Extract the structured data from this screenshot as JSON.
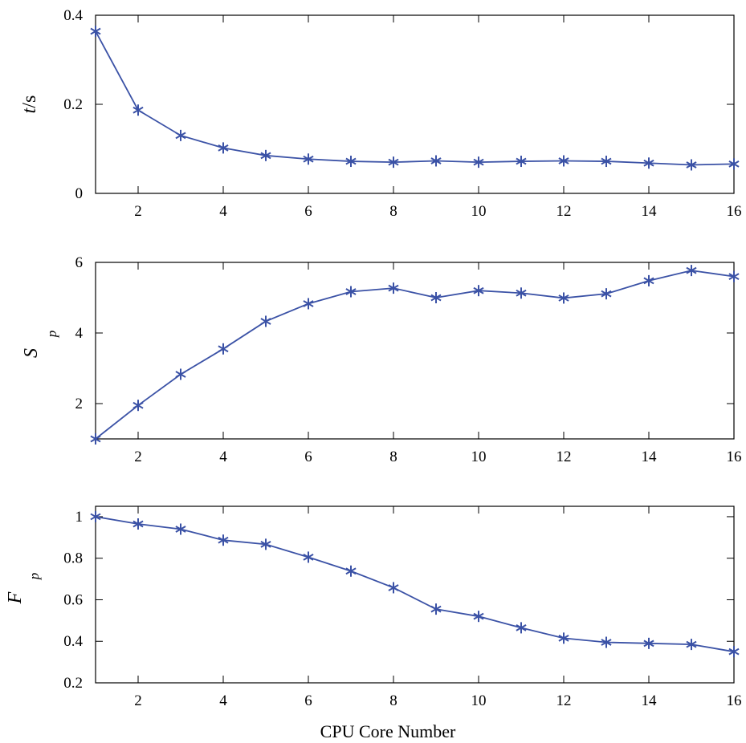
{
  "chart_data": [
    {
      "type": "line",
      "ylabel_main": "t",
      "ylabel_unit": "/s",
      "xlim": [
        1,
        16
      ],
      "ylim": [
        0,
        0.4
      ],
      "xticks": [
        2,
        4,
        6,
        8,
        10,
        12,
        14,
        16
      ],
      "yticks": [
        0,
        0.2,
        0.4
      ],
      "ytick_labels": [
        "0",
        "0.2",
        "0.4"
      ],
      "marker": "asterisk",
      "color": "#3b52a6",
      "series": [
        {
          "name": "t/s",
          "x": [
            1,
            2,
            3,
            4,
            5,
            6,
            7,
            8,
            9,
            10,
            11,
            12,
            13,
            14,
            15,
            16
          ],
          "values": [
            0.364,
            0.187,
            0.13,
            0.102,
            0.085,
            0.077,
            0.072,
            0.07,
            0.073,
            0.07,
            0.072,
            0.073,
            0.072,
            0.068,
            0.064,
            0.066
          ]
        }
      ]
    },
    {
      "type": "line",
      "ylabel_main": "S",
      "ylabel_sub": "p",
      "xlim": [
        1,
        16
      ],
      "ylim": [
        1,
        6
      ],
      "xticks": [
        2,
        4,
        6,
        8,
        10,
        12,
        14,
        16
      ],
      "yticks": [
        2,
        4,
        6
      ],
      "ytick_labels": [
        "2",
        "4",
        "6"
      ],
      "marker": "asterisk",
      "color": "#3b52a6",
      "series": [
        {
          "name": "Sp",
          "x": [
            1,
            2,
            3,
            4,
            5,
            6,
            7,
            8,
            9,
            10,
            11,
            12,
            13,
            14,
            15,
            16
          ],
          "values": [
            1.0,
            1.95,
            2.83,
            3.55,
            4.33,
            4.83,
            5.17,
            5.27,
            5.0,
            5.2,
            5.13,
            4.99,
            5.11,
            5.48,
            5.77,
            5.6
          ]
        }
      ]
    },
    {
      "type": "line",
      "ylabel_main": "F",
      "ylabel_sub": "p",
      "xlim": [
        1,
        16
      ],
      "ylim": [
        0.2,
        1.05
      ],
      "xticks": [
        2,
        4,
        6,
        8,
        10,
        12,
        14,
        16
      ],
      "yticks": [
        0.2,
        0.4,
        0.6,
        0.8,
        1
      ],
      "ytick_labels": [
        "0.2",
        "0.4",
        "0.6",
        "0.8",
        "1"
      ],
      "marker": "asterisk",
      "color": "#3b52a6",
      "series": [
        {
          "name": "Fp",
          "x": [
            1,
            2,
            3,
            4,
            5,
            6,
            7,
            8,
            9,
            10,
            11,
            12,
            13,
            14,
            15,
            16
          ],
          "values": [
            1.0,
            0.965,
            0.94,
            0.887,
            0.867,
            0.805,
            0.738,
            0.658,
            0.555,
            0.52,
            0.465,
            0.415,
            0.395,
            0.39,
            0.385,
            0.35
          ]
        }
      ]
    }
  ],
  "xlabel": "CPU Core Number",
  "xtick_labels": [
    "2",
    "4",
    "6",
    "8",
    "10",
    "12",
    "14",
    "16"
  ]
}
